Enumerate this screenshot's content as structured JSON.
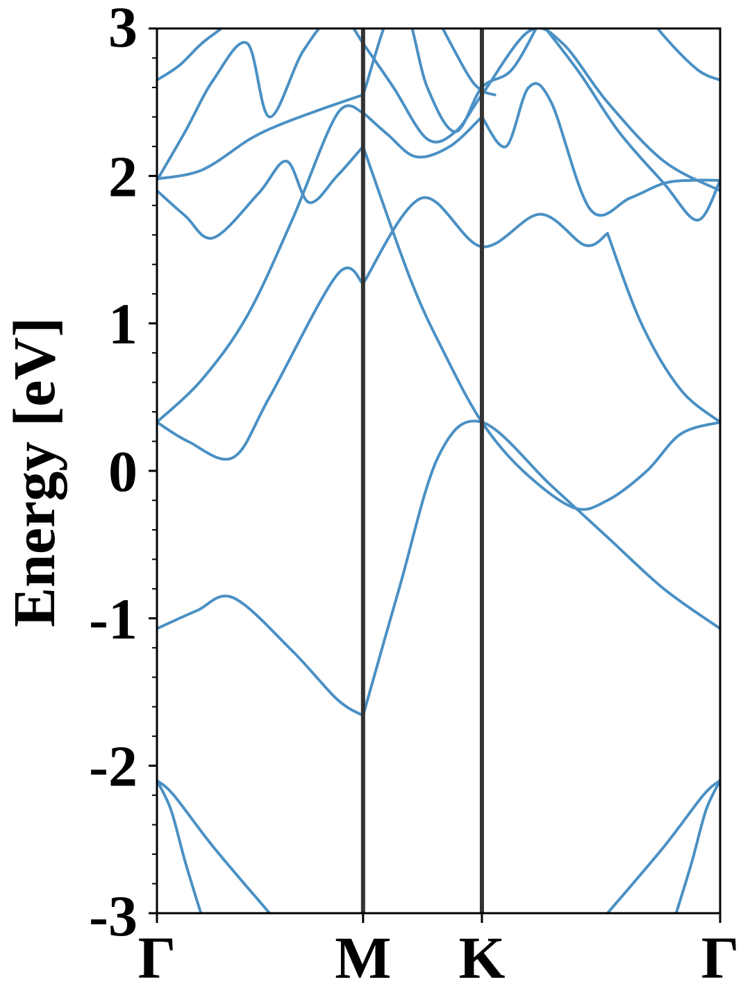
{
  "chart_data": {
    "type": "line",
    "title": "",
    "xlabel": "",
    "ylabel": "Energy [eV]",
    "ylim": [
      -3,
      3
    ],
    "yticks": [
      "3",
      "2",
      "1",
      "0",
      "-1",
      "-2",
      "-3"
    ],
    "ytick_values": [
      3,
      2,
      1,
      0,
      -1,
      -2,
      -3
    ],
    "x_range": [
      0,
      1
    ],
    "kpoints": [
      {
        "label": "Γ",
        "x": 0.0
      },
      {
        "label": "M",
        "x": 0.366
      },
      {
        "label": "K",
        "x": 0.577
      },
      {
        "label": "Γ",
        "x": 1.0
      }
    ],
    "grid": false,
    "legend": "none",
    "line_color": "#4a90c4",
    "divider_color": "#333333",
    "bands": [
      {
        "x": [
          0,
          0.07,
          0.135,
          0.24,
          0.32,
          0.366
        ],
        "values": [
          -1.07,
          -0.95,
          -0.86,
          -1.22,
          -1.55,
          -1.66
        ]
      },
      {
        "x": [
          0.366,
          0.43,
          0.5,
          0.577,
          0.7,
          0.8,
          0.9,
          1.0
        ],
        "values": [
          -1.66,
          -0.8,
          0.1,
          0.33,
          -0.1,
          -0.45,
          -0.8,
          -1.07
        ]
      },
      {
        "x": [
          0,
          0.055,
          0.135,
          0.2,
          0.32,
          0.366
        ],
        "values": [
          0.33,
          0.2,
          0.09,
          0.5,
          1.33,
          1.27
        ]
      },
      {
        "x": [
          0.366,
          0.47,
          0.577,
          0.68,
          0.76,
          0.8
        ],
        "values": [
          1.27,
          1.85,
          1.52,
          1.74,
          1.53,
          1.61
        ]
      },
      {
        "x": [
          0.8,
          0.86,
          0.93,
          1.0
        ],
        "values": [
          1.61,
          1.0,
          0.55,
          0.33
        ]
      },
      {
        "x": [
          0,
          0.08,
          0.16,
          0.24,
          0.32,
          0.366
        ],
        "values": [
          0.33,
          0.62,
          1.05,
          1.7,
          2.42,
          2.43
        ]
      },
      {
        "x": [
          0.366,
          0.41,
          0.46,
          0.52,
          0.577
        ],
        "values": [
          2.43,
          2.28,
          2.13,
          2.2,
          2.4
        ]
      },
      {
        "x": [
          0.577,
          0.62,
          0.66,
          0.7,
          0.77,
          0.84,
          0.9,
          0.95,
          1.0
        ],
        "values": [
          2.4,
          2.2,
          2.6,
          2.5,
          1.77,
          1.85,
          1.95,
          1.97,
          1.97
        ]
      },
      {
        "x": [
          0,
          0.05,
          0.1,
          0.18,
          0.23,
          0.27,
          0.32,
          0.366
        ],
        "values": [
          1.9,
          1.73,
          1.58,
          1.88,
          2.1,
          1.82,
          2.0,
          2.2
        ]
      },
      {
        "x": [
          0.366,
          0.45,
          0.51,
          0.577,
          0.65,
          0.74,
          0.8,
          0.87,
          0.93,
          1.0
        ],
        "values": [
          2.2,
          1.3,
          0.8,
          0.33,
          0.0,
          -0.25,
          -0.2,
          0.0,
          0.25,
          0.33
        ]
      },
      {
        "x": [
          0,
          0.08,
          0.165,
          0.22,
          0.29,
          0.366
        ],
        "values": [
          1.98,
          2.04,
          2.25,
          2.35,
          2.45,
          2.55
        ]
      },
      {
        "x": [
          0.366,
          0.43,
          0.48,
          0.53,
          0.577,
          0.63,
          0.68
        ],
        "values": [
          2.55,
          3.2,
          2.6,
          2.3,
          2.6,
          2.72,
          3.05
        ]
      },
      {
        "x": [
          0.68,
          0.75,
          0.82,
          0.9,
          0.96,
          1.0
        ],
        "values": [
          3.05,
          2.7,
          2.3,
          1.95,
          1.7,
          1.97
        ]
      },
      {
        "x": [
          0,
          0.05,
          0.1,
          0.16,
          0.2,
          0.26,
          0.32,
          0.366
        ],
        "values": [
          1.97,
          2.3,
          2.65,
          2.9,
          2.4,
          2.85,
          3.1,
          2.9
        ]
      },
      {
        "x": [
          0.366,
          0.42,
          0.48,
          0.53,
          0.577,
          0.66,
          0.72,
          0.8,
          0.9,
          1.0
        ],
        "values": [
          2.9,
          2.6,
          2.25,
          2.3,
          2.55,
          2.98,
          2.9,
          2.5,
          2.1,
          1.9
        ]
      },
      {
        "x": [
          0,
          0.04,
          0.08,
          0.13,
          0.16
        ],
        "values": [
          2.65,
          2.75,
          2.9,
          3.05,
          3.2
        ]
      },
      {
        "x": [
          0.48,
          0.55,
          0.577,
          0.6
        ],
        "values": [
          3.2,
          2.7,
          2.58,
          2.55
        ]
      },
      {
        "x": [
          0.85,
          0.9,
          0.96,
          1.0
        ],
        "values": [
          3.2,
          2.95,
          2.72,
          2.65
        ]
      },
      {
        "x": [
          0,
          0.025,
          0.05,
          0.078
        ],
        "values": [
          -2.1,
          -2.3,
          -2.65,
          -3.0
        ]
      },
      {
        "x": [
          0,
          0.03,
          0.1,
          0.2
        ],
        "values": [
          -2.1,
          -2.2,
          -2.55,
          -3.0
        ]
      },
      {
        "x": [
          0.8,
          0.9,
          0.97,
          1.0
        ],
        "values": [
          -3.0,
          -2.55,
          -2.2,
          -2.1
        ]
      },
      {
        "x": [
          0.922,
          0.95,
          0.975,
          1.0
        ],
        "values": [
          -3.0,
          -2.65,
          -2.3,
          -2.1
        ]
      }
    ]
  }
}
